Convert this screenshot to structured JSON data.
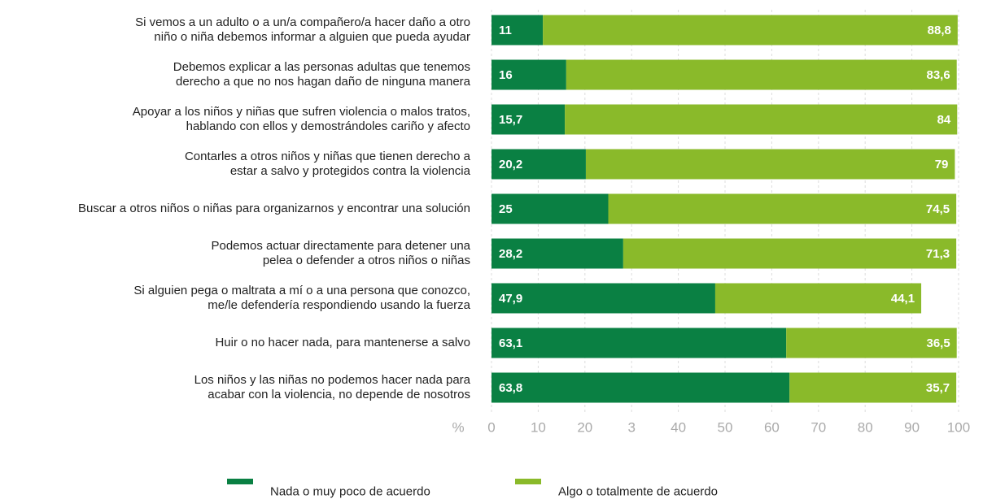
{
  "chart_data": {
    "type": "stacked_bar_horizontal",
    "categories": [
      "Si vemos a un adulto o a un/a compañero/a hacer daño a otro\nniño o niña debemos informar a alguien que pueda ayudar",
      "Debemos explicar a las personas adultas que tenemos\nderecho a que no nos hagan daño de ninguna manera",
      "Apoyar a los niños y niñas que sufren violencia o malos tratos,\nhablando con ellos y demostrándoles cariño y afecto",
      "Contarles a otros niños y niñas que tienen derecho a\nestar a salvo y protegidos contra la violencia",
      "Buscar a otros niños o niñas para organizarnos y encontrar una solución",
      "Podemos actuar directamente para detener una\npelea o defender a otros niños o niñas",
      "Si alguien pega o maltrata a mí o a una persona que conozco,\nme/le defendería respondiendo usando la fuerza",
      "Huir o no hacer nada, para mantenerse a salvo",
      "Los niños y las niñas no podemos hacer nada para\nacabar con la violencia, no depende de nosotros"
    ],
    "series": [
      {
        "name": "Nada o muy poco de acuerdo",
        "color": "#0a8043",
        "values": [
          11,
          16,
          15.7,
          20.2,
          25,
          28.2,
          47.9,
          63.1,
          63.8
        ],
        "value_labels": [
          "11",
          "16",
          "15,7",
          "20,2",
          "25",
          "28,2",
          "47,9",
          "63,1",
          "63,8"
        ]
      },
      {
        "name": "Algo o totalmente de acuerdo",
        "color": "#8aba2a",
        "values": [
          88.8,
          83.6,
          84,
          79,
          74.5,
          71.3,
          44.1,
          36.5,
          35.7
        ],
        "value_labels": [
          "88,8",
          "83,6",
          "84",
          "79",
          "74,5",
          "71,3",
          "44,1",
          "36,5",
          "35,7"
        ]
      }
    ],
    "x_label": "%",
    "xlim": [
      0,
      100
    ],
    "xticks": [
      0,
      10,
      20,
      {
        "value": 30,
        "label": "3"
      },
      40,
      50,
      60,
      70,
      80,
      90,
      100
    ],
    "grid": true
  }
}
